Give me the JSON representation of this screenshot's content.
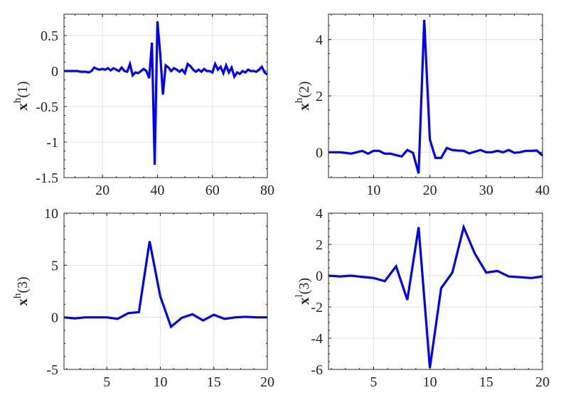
{
  "chart_data": [
    {
      "type": "line",
      "ylabel": {
        "base": "x",
        "sup": "h",
        "arg": "(1)"
      },
      "xlim": [
        6,
        80
      ],
      "ylim": [
        -1.5,
        0.8
      ],
      "xticks": [
        20,
        40,
        60,
        80
      ],
      "xtick_labels": [
        "20",
        "40",
        "60",
        "80"
      ],
      "yticks": [
        -1.5,
        -1,
        -0.5,
        0,
        0.5
      ],
      "ytick_labels": [
        "-1.5",
        "-1",
        "-0.5",
        "0",
        "0.5"
      ],
      "grid": true,
      "color": "#0000ff",
      "x": [
        6,
        7,
        8,
        9,
        10,
        11,
        12,
        13,
        14,
        15,
        16,
        17,
        18,
        19,
        20,
        21,
        22,
        23,
        24,
        25,
        26,
        27,
        28,
        29,
        30,
        31,
        32,
        33,
        34,
        35,
        36,
        37,
        38,
        39,
        40,
        41,
        42,
        43,
        44,
        45,
        46,
        47,
        48,
        49,
        50,
        51,
        52,
        53,
        54,
        55,
        56,
        57,
        58,
        59,
        60,
        61,
        62,
        63,
        64,
        65,
        66,
        67,
        68,
        69,
        70,
        71,
        72,
        73,
        74,
        75,
        76,
        77,
        78,
        79,
        80
      ],
      "y": [
        0.0,
        0.0,
        0.0,
        0.0,
        0.0,
        0.0,
        -0.01,
        -0.01,
        -0.01,
        -0.02,
        0.0,
        0.05,
        0.03,
        0.02,
        0.03,
        0.02,
        0.04,
        0.01,
        0.04,
        0.02,
        0.0,
        0.05,
        0.0,
        -0.01,
        0.1,
        -0.06,
        -0.02,
        -0.03,
        0.0,
        0.03,
        0.0,
        -0.1,
        0.4,
        -1.32,
        0.7,
        0.25,
        -0.33,
        0.08,
        0.05,
        0.0,
        0.04,
        0.02,
        -0.01,
        0.02,
        -0.03,
        0.1,
        0.07,
        0.02,
        -0.01,
        0.02,
        -0.01,
        0.03,
        0.0,
        0.0,
        -0.02,
        0.1,
        0.02,
        0.06,
        -0.03,
        0.08,
        -0.02,
        0.05,
        -0.08,
        -0.02,
        -0.04,
        0.0,
        -0.02,
        0.02,
        0.0,
        0.0,
        -0.01,
        0.02,
        0.06,
        -0.02,
        -0.05
      ]
    },
    {
      "type": "line",
      "ylabel": {
        "base": "x",
        "sup": "h",
        "arg": "(2)"
      },
      "xlim": [
        2,
        40
      ],
      "ylim": [
        -0.9,
        4.9
      ],
      "xticks": [
        10,
        20,
        30,
        40
      ],
      "xtick_labels": [
        "10",
        "20",
        "30",
        "40"
      ],
      "yticks": [
        0,
        2,
        4
      ],
      "ytick_labels": [
        "0",
        "2",
        "4"
      ],
      "grid": true,
      "color": "#0000ff",
      "x": [
        2,
        3,
        4,
        5,
        6,
        7,
        8,
        9,
        10,
        11,
        12,
        13,
        14,
        15,
        16,
        17,
        18,
        19,
        20,
        21,
        22,
        23,
        24,
        25,
        26,
        27,
        28,
        29,
        30,
        31,
        32,
        33,
        34,
        35,
        36,
        37,
        38,
        39,
        40
      ],
      "y": [
        0.0,
        0.0,
        0.0,
        -0.02,
        -0.05,
        0.0,
        0.05,
        -0.05,
        0.05,
        0.05,
        -0.05,
        -0.05,
        -0.1,
        -0.15,
        0.08,
        -0.02,
        -0.75,
        4.7,
        0.45,
        -0.2,
        -0.2,
        0.15,
        0.08,
        0.06,
        0.05,
        -0.04,
        0.02,
        0.08,
        0.0,
        0.0,
        0.05,
        0.0,
        0.08,
        -0.02,
        0.0,
        0.05,
        0.05,
        0.06,
        -0.12
      ]
    },
    {
      "type": "line",
      "ylabel": {
        "base": "x",
        "sup": "h",
        "arg": "(3)"
      },
      "xlim": [
        1,
        20
      ],
      "ylim": [
        -5,
        10
      ],
      "xticks": [
        5,
        10,
        15,
        20
      ],
      "xtick_labels": [
        "5",
        "10",
        "15",
        "20"
      ],
      "yticks": [
        -5,
        0,
        5,
        10
      ],
      "ytick_labels": [
        "-5",
        "0",
        "5",
        "10"
      ],
      "grid": true,
      "color": "#0000ff",
      "x": [
        1,
        2,
        3,
        4,
        5,
        6,
        7,
        8,
        9,
        10,
        11,
        12,
        13,
        14,
        15,
        16,
        17,
        18,
        19,
        20
      ],
      "y": [
        0.0,
        -0.1,
        0.0,
        0.0,
        0.0,
        -0.15,
        0.4,
        0.5,
        7.3,
        2.0,
        -0.9,
        -0.05,
        0.3,
        -0.3,
        0.25,
        -0.15,
        0.0,
        0.05,
        0.0,
        0.0
      ]
    },
    {
      "type": "line",
      "ylabel": {
        "base": "x",
        "sup": "l",
        "arg": "(3)"
      },
      "xlim": [
        1,
        20
      ],
      "ylim": [
        -6,
        4
      ],
      "xticks": [
        5,
        10,
        15,
        20
      ],
      "xtick_labels": [
        "5",
        "10",
        "15",
        "20"
      ],
      "yticks": [
        -6,
        -4,
        -2,
        0,
        2,
        4
      ],
      "ytick_labels": [
        "-6",
        "-4",
        "-2",
        "0",
        "2",
        "4"
      ],
      "grid": true,
      "color": "#0000ff",
      "x": [
        1,
        2,
        3,
        4,
        5,
        6,
        7,
        8,
        9,
        10,
        11,
        12,
        13,
        14,
        15,
        16,
        17,
        18,
        19,
        20
      ],
      "y": [
        0.0,
        -0.05,
        0.0,
        -0.08,
        -0.15,
        -0.35,
        0.6,
        -1.55,
        3.1,
        -5.9,
        -0.8,
        0.2,
        3.1,
        1.4,
        0.2,
        0.3,
        -0.05,
        -0.1,
        -0.15,
        -0.05
      ]
    }
  ]
}
